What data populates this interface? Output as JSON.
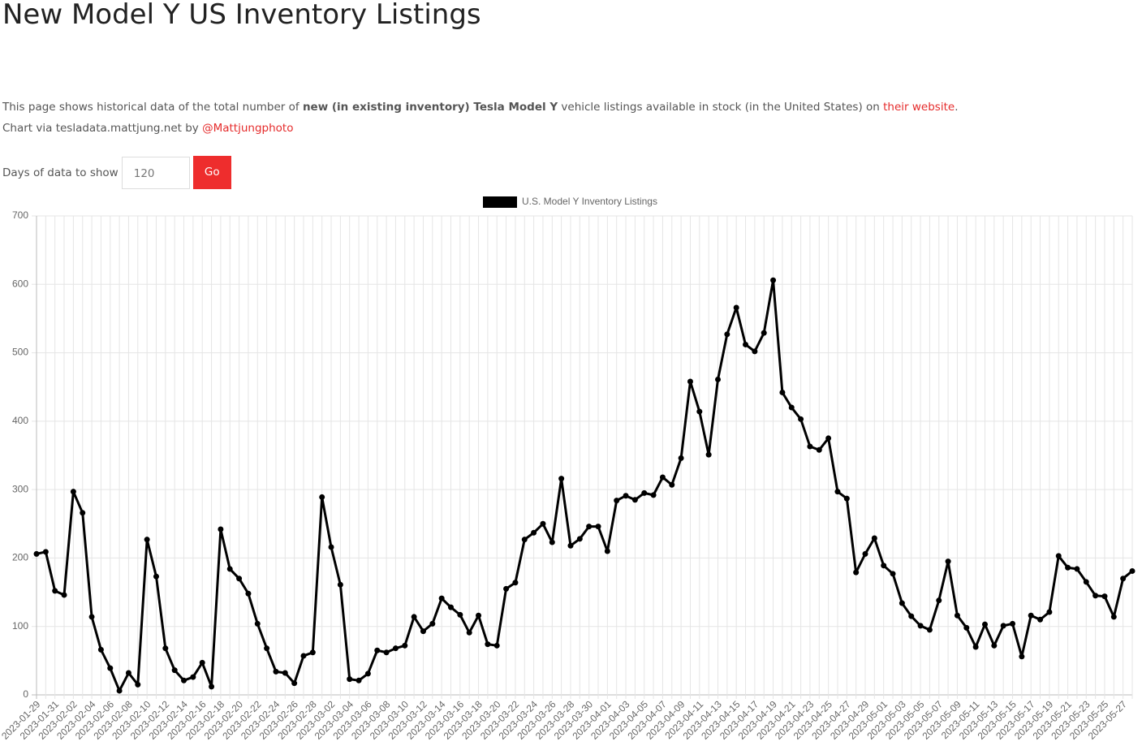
{
  "header": {
    "title": "New Model Y US Inventory Listings"
  },
  "intro": {
    "text_1": "This page shows historical data of the total number of ",
    "bold": "new (in existing inventory) Tesla Model Y",
    "text_2": " vehicle listings available in stock (in the United States) on ",
    "link": "their website",
    "text_3": "."
  },
  "credit": {
    "text": "Chart via tesladata.mattjung.net by ",
    "link": "@Mattjungphoto"
  },
  "controls": {
    "label": "Days of data to show",
    "days": 120,
    "button": "Go"
  },
  "chart_data": {
    "type": "line",
    "categories": [
      "2023-01-29",
      null,
      "2023-01-31",
      null,
      "2023-02-02",
      null,
      "2023-02-04",
      null,
      "2023-02-06",
      null,
      "2023-02-08",
      null,
      "2023-02-10",
      null,
      "2023-02-12",
      null,
      "2023-02-14",
      null,
      "2023-02-16",
      null,
      "2023-02-18",
      null,
      "2023-02-20",
      null,
      "2023-02-22",
      null,
      "2023-02-24",
      null,
      "2023-02-26",
      null,
      "2023-02-28",
      null,
      "2023-03-02",
      null,
      "2023-03-04",
      null,
      "2023-03-06",
      null,
      "2023-03-08",
      null,
      "2023-03-10",
      null,
      "2023-03-12",
      null,
      "2023-03-14",
      null,
      "2023-03-16",
      null,
      "2023-03-18",
      null,
      "2023-03-20",
      null,
      "2023-03-22",
      null,
      "2023-03-24",
      null,
      "2023-03-26",
      null,
      "2023-03-28",
      null,
      "2023-03-30",
      null,
      "2023-04-01",
      null,
      "2023-04-03",
      null,
      "2023-04-05",
      null,
      "2023-04-07",
      null,
      "2023-04-09",
      null,
      "2023-04-11",
      null,
      "2023-04-13",
      null,
      "2023-04-15",
      null,
      "2023-04-17",
      null,
      "2023-04-19",
      null,
      "2023-04-21",
      null,
      "2023-04-23",
      null,
      "2023-04-25",
      null,
      "2023-04-27",
      null,
      "2023-04-29",
      null,
      "2023-05-01",
      null,
      "2023-05-03",
      null,
      "2023-05-05",
      null,
      "2023-05-07",
      null,
      "2023-05-09",
      null,
      "2023-05-11",
      null,
      "2023-05-13",
      null,
      "2023-05-15",
      null,
      "2023-05-17",
      null,
      "2023-05-19",
      null,
      "2023-05-21",
      null,
      "2023-05-23",
      null,
      "2023-05-25",
      null,
      "2023-05-27",
      null
    ],
    "series": [
      {
        "name": "U.S. Model Y Inventory Listings",
        "color": "#000000",
        "values": [
          206,
          209,
          152,
          146,
          297,
          266,
          114,
          66,
          39,
          6,
          32,
          15,
          227,
          173,
          68,
          36,
          21,
          26,
          47,
          12,
          242,
          184,
          170,
          148,
          104,
          68,
          34,
          32,
          17,
          57,
          62,
          289,
          216,
          161,
          23,
          21,
          31,
          65,
          62,
          68,
          72,
          114,
          93,
          104,
          141,
          128,
          117,
          91,
          116,
          74,
          72,
          155,
          164,
          227,
          237,
          250,
          223,
          316,
          218,
          228,
          246,
          246,
          210,
          284,
          291,
          285,
          295,
          292,
          318,
          307,
          346,
          458,
          414,
          351,
          461,
          527,
          566,
          512,
          502,
          529,
          606,
          442,
          420,
          403,
          363,
          358,
          375,
          297,
          287,
          179,
          206,
          229,
          189,
          177,
          134,
          115,
          101,
          95,
          138,
          195,
          116,
          98,
          70,
          103,
          72,
          101,
          104,
          56,
          116,
          110,
          121,
          203,
          186,
          184,
          165,
          145,
          144,
          114,
          170,
          181
        ]
      }
    ],
    "ylim": [
      0,
      700
    ],
    "yticks": [
      0,
      100,
      200,
      300,
      400,
      500,
      600,
      700
    ],
    "grid": true
  }
}
